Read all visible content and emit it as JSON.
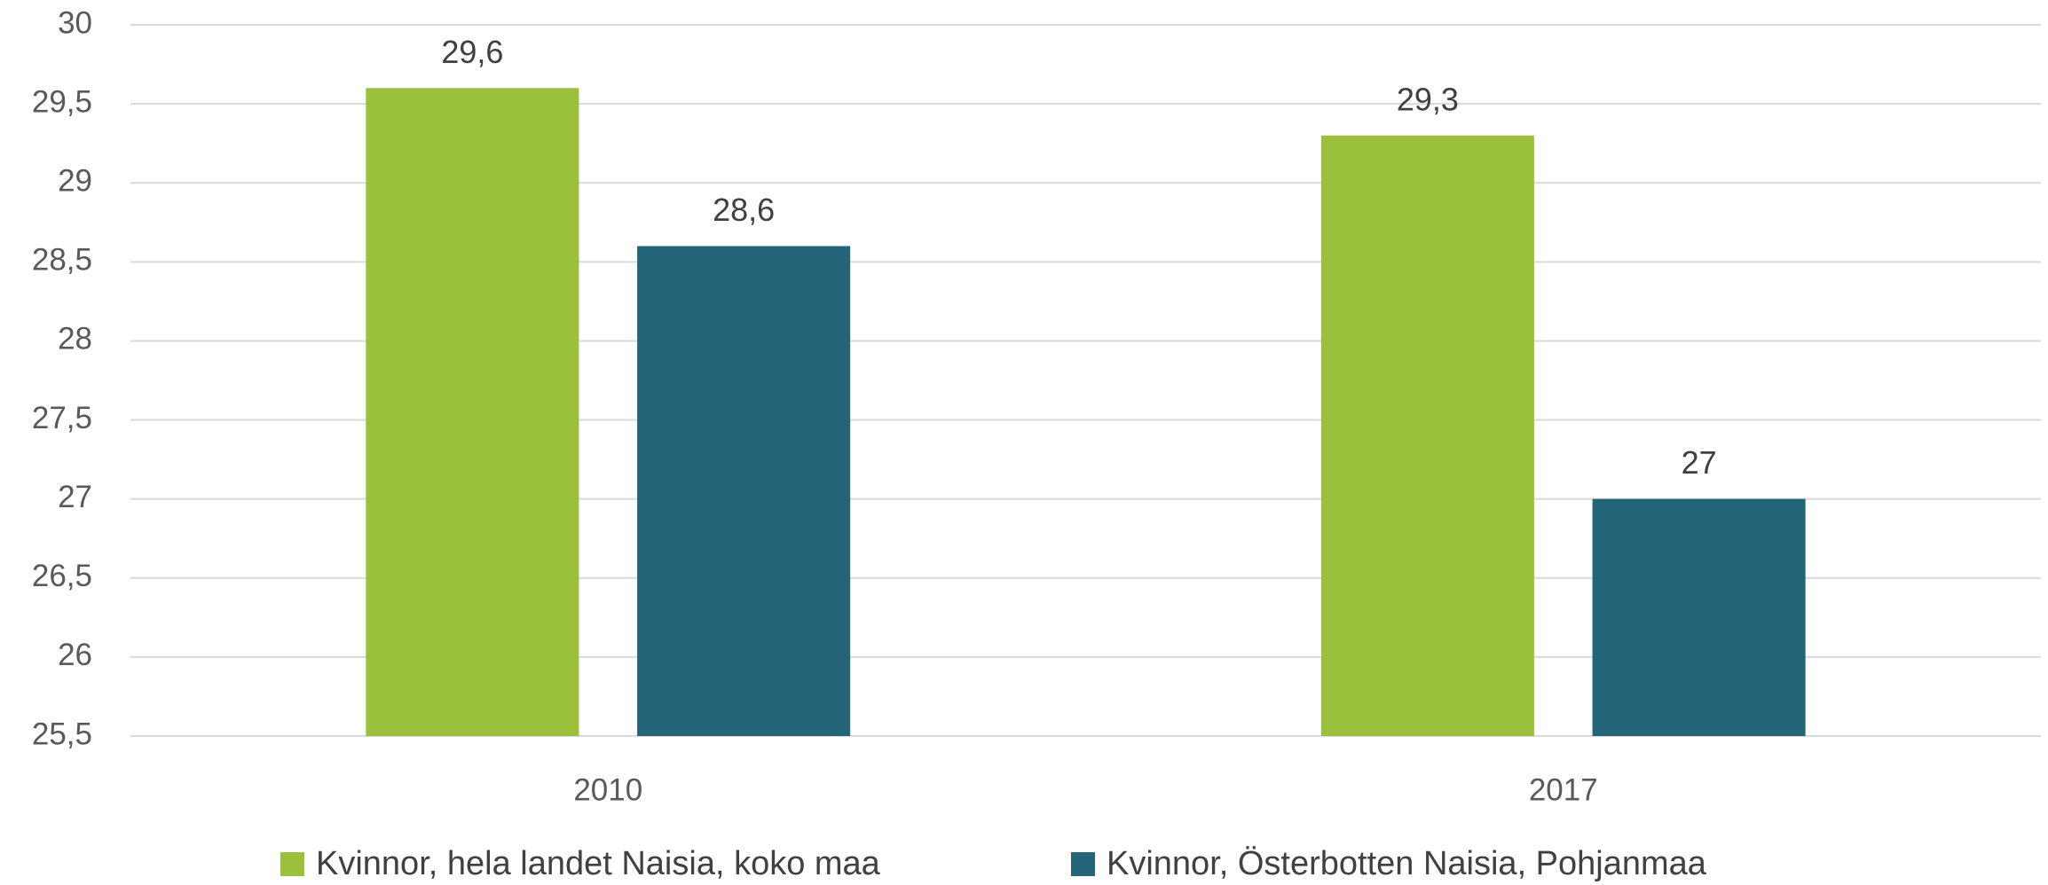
{
  "chart_data": {
    "type": "bar",
    "categories": [
      "2010",
      "2017"
    ],
    "series": [
      {
        "name": "Kvinnor, hela landet Naisia, koko maa",
        "color": "#9bc13c",
        "values": [
          29.6,
          29.3
        ],
        "value_labels": [
          "29,6",
          "29,3"
        ]
      },
      {
        "name": "Kvinnor, Österbotten Naisia, Pohjanmaa",
        "color": "#246478",
        "values": [
          28.6,
          27
        ],
        "value_labels": [
          "28,6",
          "27"
        ]
      }
    ],
    "ylim": [
      25.5,
      30
    ],
    "yticks": [
      {
        "value": 25.5,
        "label": "25,5"
      },
      26,
      {
        "value": 26.5,
        "label": "26,5"
      },
      27,
      {
        "value": 27.5,
        "label": "27,5"
      },
      28,
      {
        "value": 28.5,
        "label": "28,5"
      },
      29,
      {
        "value": 29.5,
        "label": "29,5"
      },
      30
    ],
    "grid": true,
    "legend": "bottom"
  }
}
